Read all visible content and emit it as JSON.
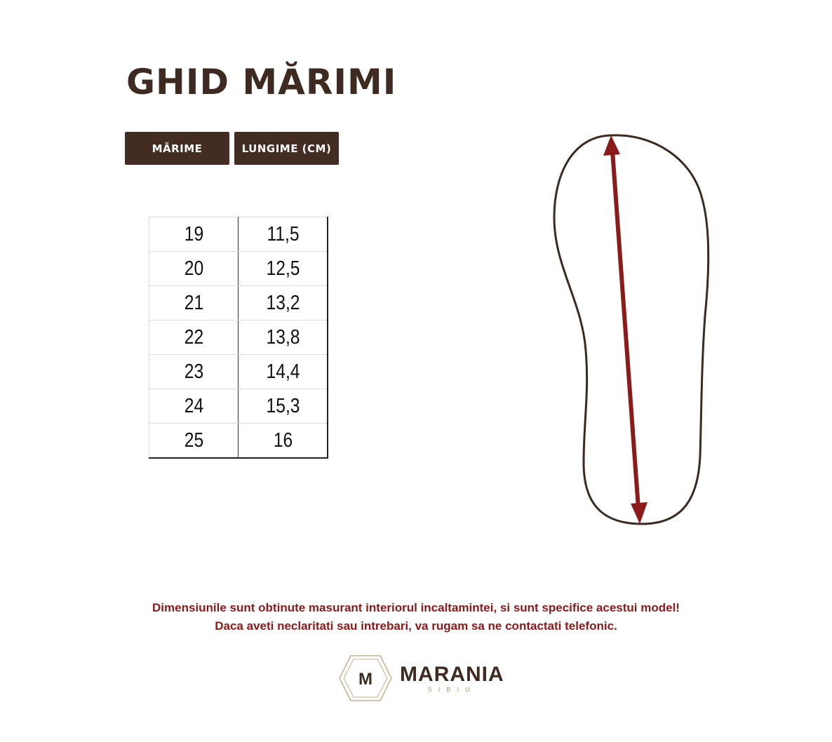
{
  "title": "GHID MĂRIMI",
  "table": {
    "headers": [
      "MĂRIME",
      "LUNGIME (CM)"
    ],
    "rows": [
      [
        "19",
        "11,5"
      ],
      [
        "20",
        "12,5"
      ],
      [
        "21",
        "13,2"
      ],
      [
        "22",
        "13,8"
      ],
      [
        "23",
        "14,4"
      ],
      [
        "24",
        "15,3"
      ],
      [
        "25",
        "16"
      ]
    ]
  },
  "notes": [
    "Dimensiunile sunt obtinute masurant interiorul incaltamintei, si sunt specifice acestui model!",
    "Daca aveti neclaritati sau intrebari, va rugam sa ne contactati telefonic."
  ],
  "logo": {
    "name": "MARANIA",
    "sub": "SIBIU"
  },
  "colors": {
    "brown": "#432c22",
    "accent_red": "#8b1a1a",
    "gold": "#b89a6a"
  }
}
